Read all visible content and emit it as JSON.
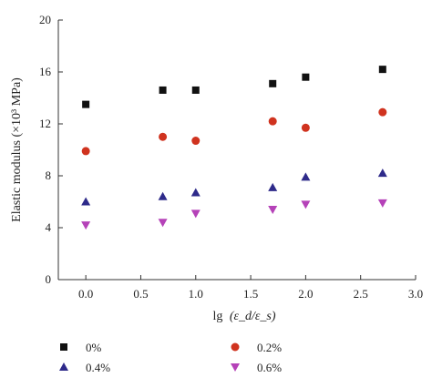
{
  "chart_data": {
    "type": "scatter",
    "xlim": [
      -0.25,
      3.0
    ],
    "ylim": [
      0,
      20
    ],
    "x_ticks": [
      "0.0",
      "0.5",
      "1.0",
      "1.5",
      "2.0",
      "2.5",
      "3.0"
    ],
    "y_ticks": [
      "0",
      "4",
      "8",
      "12",
      "16",
      "20"
    ],
    "xlabel_text": "lg",
    "xlabel_math": "(ε_d/ε_s)",
    "ylabel_text": "Elastic modulus (×10³ MPa)",
    "grid": false,
    "legend_position": "bottom",
    "series": [
      {
        "name": "0%",
        "marker": "square",
        "color": "#111111",
        "x": [
          0.0,
          0.7,
          1.0,
          1.7,
          2.0,
          2.7
        ],
        "y": [
          13.5,
          14.6,
          14.6,
          15.1,
          15.6,
          16.2
        ]
      },
      {
        "name": "0.2%",
        "marker": "circle",
        "color": "#d0331f",
        "x": [
          0.0,
          0.7,
          1.0,
          1.7,
          2.0,
          2.7
        ],
        "y": [
          9.9,
          11.0,
          10.7,
          12.2,
          11.7,
          12.9
        ]
      },
      {
        "name": "0.4%",
        "marker": "triangle-up",
        "color": "#2e2a8a",
        "x": [
          0.0,
          0.7,
          1.0,
          1.7,
          2.0,
          2.7
        ],
        "y": [
          6.0,
          6.4,
          6.7,
          7.1,
          7.9,
          8.2
        ]
      },
      {
        "name": "0.6%",
        "marker": "triangle-down",
        "color": "#b542b8",
        "x": [
          0.0,
          0.7,
          1.0,
          1.7,
          2.0,
          2.7
        ],
        "y": [
          4.2,
          4.4,
          5.1,
          5.4,
          5.8,
          5.9
        ]
      }
    ]
  }
}
